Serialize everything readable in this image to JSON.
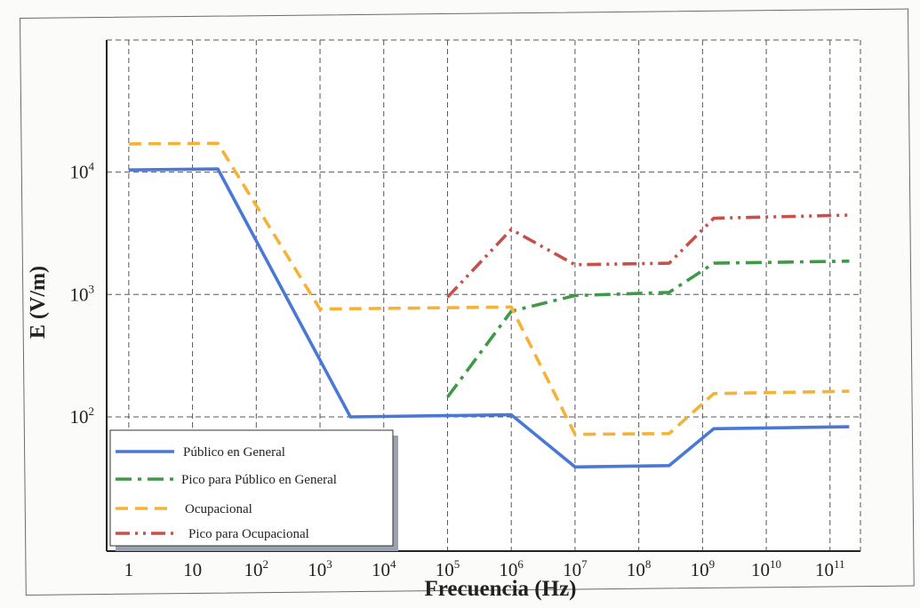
{
  "chart_data": {
    "type": "line",
    "title": "",
    "xlabel": "Frecuencia (Hz)",
    "ylabel": "E (V/m)",
    "x_scale": "log",
    "y_scale": "log",
    "xlim": [
      0.45,
      300000000000
    ],
    "ylim": [
      8,
      120000
    ],
    "grid": true,
    "legend_position": "bottom-left",
    "x_ticks": [
      {
        "value": 1,
        "base": "1",
        "exp": ""
      },
      {
        "value": 10,
        "base": "10",
        "exp": ""
      },
      {
        "value": 100,
        "base": "10",
        "exp": "2"
      },
      {
        "value": 1000,
        "base": "10",
        "exp": "3"
      },
      {
        "value": 10000,
        "base": "10",
        "exp": "4"
      },
      {
        "value": 100000,
        "base": "10",
        "exp": "5"
      },
      {
        "value": 1000000,
        "base": "10",
        "exp": "6"
      },
      {
        "value": 10000000,
        "base": "10",
        "exp": "7"
      },
      {
        "value": 100000000,
        "base": "10",
        "exp": "8"
      },
      {
        "value": 1000000000,
        "base": "10",
        "exp": "9"
      },
      {
        "value": 10000000000,
        "base": "10",
        "exp": "10"
      },
      {
        "value": 100000000000,
        "base": "10",
        "exp": "11"
      }
    ],
    "y_ticks": [
      {
        "value": 100,
        "base": "10",
        "exp": "2"
      },
      {
        "value": 1000,
        "base": "10",
        "exp": "3"
      },
      {
        "value": 10000,
        "base": "10",
        "exp": "4"
      }
    ],
    "series": [
      {
        "name": "Público en General",
        "color": "#4a78d6",
        "style": "solid",
        "points": [
          [
            1,
            10400
          ],
          [
            25,
            10600
          ],
          [
            3000,
            100
          ],
          [
            1000000,
            104
          ],
          [
            10000000,
            39
          ],
          [
            300000000,
            40
          ],
          [
            1500000000,
            80
          ],
          [
            200000000000,
            83
          ]
        ]
      },
      {
        "name": "Pico para Público en General",
        "color": "#3f9a48",
        "style": "dashdot",
        "points": [
          [
            100000,
            145
          ],
          [
            1000000,
            730
          ],
          [
            10000000,
            980
          ],
          [
            300000000,
            1040
          ],
          [
            1500000000,
            1800
          ],
          [
            200000000000,
            1870
          ]
        ]
      },
      {
        "name": "Ocupacional",
        "color": "#f5b236",
        "style": "dashed",
        "points": [
          [
            1,
            17000
          ],
          [
            25,
            17200
          ],
          [
            1000,
            760
          ],
          [
            1000000,
            790
          ],
          [
            10000000,
            72
          ],
          [
            300000000,
            73
          ],
          [
            1500000000,
            155
          ],
          [
            200000000000,
            162
          ]
        ]
      },
      {
        "name": "Pico para Ocupacional",
        "color": "#c8504a",
        "style": "dashdotdot",
        "points": [
          [
            100000,
            950
          ],
          [
            1000000,
            3400
          ],
          [
            10000000,
            1750
          ],
          [
            300000000,
            1800
          ],
          [
            1500000000,
            4200
          ],
          [
            200000000000,
            4450
          ]
        ]
      }
    ]
  }
}
